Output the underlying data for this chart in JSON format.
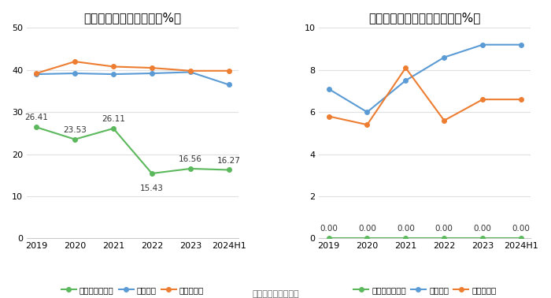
{
  "left_title": "近年来资产负债率情况（%）",
  "right_title": "近年来有息资产负债率情况（%）",
  "footer": "数据来源：恒生聚源",
  "x_labels": [
    "2019",
    "2020",
    "2021",
    "2022",
    "2023",
    "2024H1"
  ],
  "left_company": [
    26.41,
    23.53,
    26.11,
    15.43,
    16.56,
    16.27
  ],
  "left_industry_mean": [
    39.0,
    39.2,
    39.0,
    39.2,
    39.5,
    36.5
  ],
  "left_industry_median": [
    39.2,
    42.0,
    40.8,
    40.5,
    39.8,
    39.8
  ],
  "left_ylim": [
    0,
    50
  ],
  "left_yticks": [
    0,
    10,
    20,
    30,
    40,
    50
  ],
  "right_company": [
    0.0,
    0.0,
    0.0,
    0.0,
    0.0,
    0.0
  ],
  "right_industry_mean": [
    7.1,
    6.0,
    7.5,
    8.6,
    9.2,
    9.2
  ],
  "right_industry_median": [
    5.8,
    5.4,
    8.1,
    5.6,
    6.6,
    6.6
  ],
  "right_ylim": [
    0,
    10
  ],
  "right_yticks": [
    0,
    2,
    4,
    6,
    8,
    10
  ],
  "color_company": "#5cb85c",
  "color_mean": "#5b9bd5",
  "color_median": "#ed7d31",
  "legend_left": [
    "公司资产负债率",
    "行业均值",
    "行业中位数"
  ],
  "legend_right": [
    "有息资产负债率",
    "行业均值",
    "行业中位数"
  ],
  "bg_color": "#ffffff",
  "grid_color": "#e0e0e0",
  "title_fontsize": 11,
  "label_fontsize": 8,
  "annot_fontsize": 7.5,
  "legend_fontsize": 7.5
}
